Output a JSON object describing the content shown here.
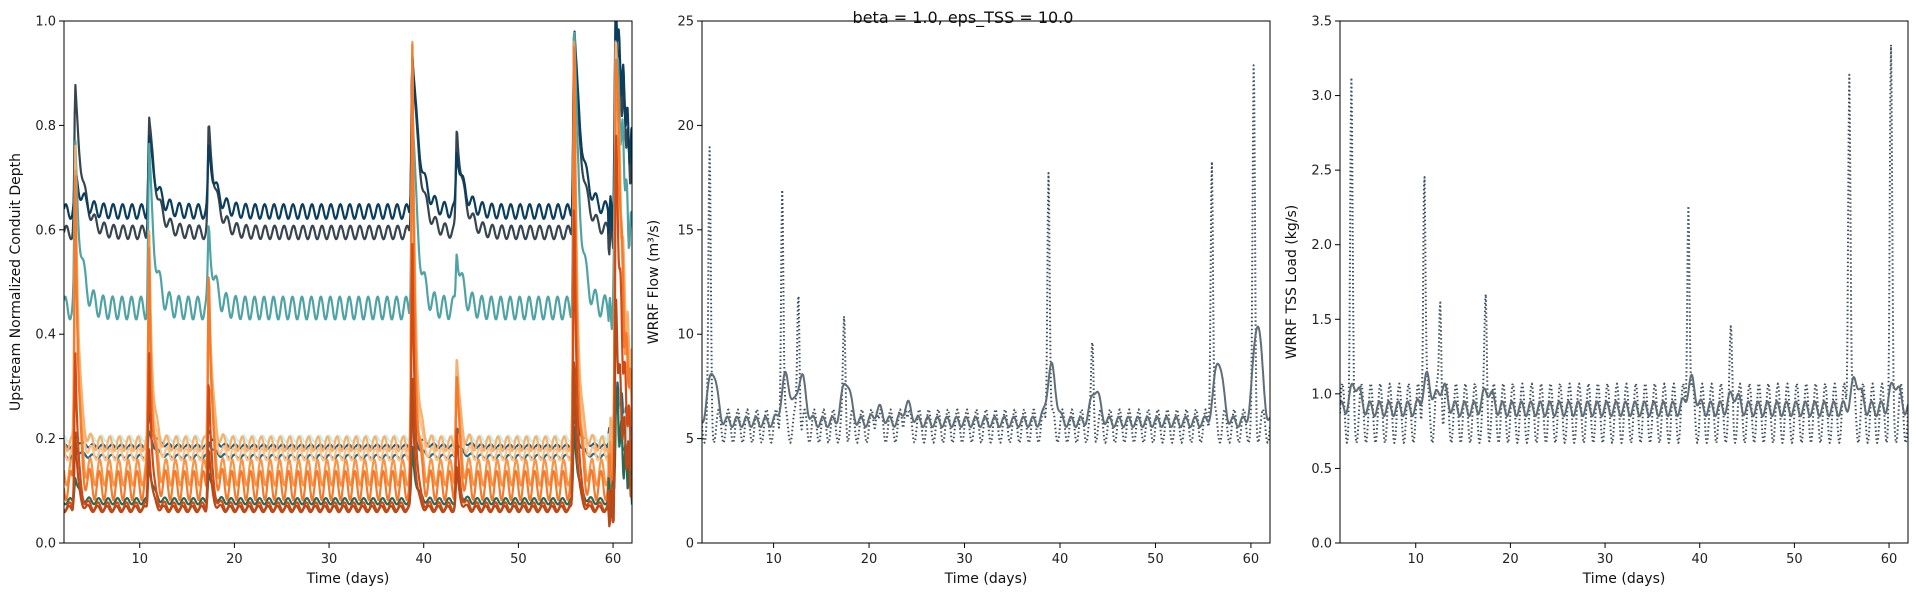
{
  "figure": {
    "suptitle": "beta = 1.0, eps_TSS = 10.0"
  },
  "chart_data": [
    {
      "type": "line",
      "xlabel": "Time (days)",
      "ylabel": "Upstream Normalized Conduit Depth",
      "xlim": [
        2,
        62
      ],
      "ylim": [
        0.0,
        1.0
      ],
      "xticks": [
        10,
        20,
        30,
        40,
        50,
        60
      ],
      "yticks": [
        0.0,
        0.2,
        0.4,
        0.6,
        0.8,
        1.0
      ],
      "ytick_labels": [
        "0.0",
        "0.2",
        "0.4",
        "0.6",
        "0.8",
        "1.0"
      ],
      "grid": false,
      "series": [
        {
          "color": "#36454f",
          "base": 0.595,
          "amp": 0.013,
          "peaks": [
            0.27,
            0.22,
            0.2,
            0.35,
            0.2,
            0.38,
            0.42
          ],
          "peak_width": 0.8
        },
        {
          "color": "#0b3d5c",
          "base": 0.635,
          "amp": 0.014,
          "peaks": [
            0.07,
            0.14,
            0.12,
            0.31,
            0.12,
            0.36,
            0.4
          ],
          "peak_width": 0.8
        },
        {
          "color": "#4fa3a5",
          "base": 0.45,
          "amp": 0.022,
          "peaks": [
            0.3,
            0.3,
            0.15,
            0.4,
            0.12,
            0.55,
            0.55
          ],
          "peak_width": 0.6
        },
        {
          "color": "#1b5e84",
          "base": 0.185,
          "amp": 0.004,
          "peaks": [
            0.02,
            0.06,
            0.03,
            0.07,
            0.04,
            0.08,
            0.1
          ],
          "peak_width": 0.6
        },
        {
          "color": "#1b6e8c",
          "base": 0.165,
          "amp": 0.004,
          "peaks": [
            0.02,
            0.05,
            0.03,
            0.06,
            0.03,
            0.07,
            0.09
          ],
          "peak_width": 0.6
        },
        {
          "color": "#c8f0ea",
          "base": 0.2,
          "amp": 0.006,
          "peaks": [
            0.0,
            0.02,
            0.01,
            0.02,
            0.01,
            0.02,
            0.03
          ],
          "peak_width": 0.5
        },
        {
          "color": "#ffc08a",
          "base": 0.17,
          "amp": 0.012,
          "peaks": [
            0.5,
            0.35,
            0.3,
            0.7,
            0.2,
            0.75,
            0.8
          ],
          "peak_width": 0.35
        },
        {
          "color": "#f7b06d",
          "base": 0.19,
          "amp": 0.014,
          "peaks": [
            0.58,
            0.4,
            0.35,
            0.72,
            0.18,
            0.78,
            0.8
          ],
          "peak_width": 0.35
        },
        {
          "color": "#f99546",
          "base": 0.135,
          "amp": 0.025,
          "peaks": [
            0.6,
            0.45,
            0.4,
            0.8,
            0.2,
            0.85,
            0.85
          ],
          "peak_width": 0.3
        },
        {
          "color": "#f57a2b",
          "base": 0.11,
          "amp": 0.028,
          "peaks": [
            0.62,
            0.46,
            0.45,
            0.82,
            0.22,
            0.87,
            0.9
          ],
          "peak_width": 0.3
        },
        {
          "color": "#2a6a55",
          "base": 0.08,
          "amp": 0.006,
          "peaks": [
            0.05,
            0.08,
            0.06,
            0.1,
            0.05,
            0.15,
            0.2
          ],
          "peak_width": 0.4
        },
        {
          "color": "#d24a14",
          "base": 0.07,
          "amp": 0.008,
          "peaks": [
            0.3,
            0.3,
            0.25,
            0.5,
            0.15,
            0.6,
            0.7
          ],
          "peak_width": 0.3
        },
        {
          "color": "#b84a1a",
          "base": 0.065,
          "amp": 0.006,
          "peaks": [
            0.15,
            0.12,
            0.12,
            0.25,
            0.08,
            0.3,
            0.38
          ],
          "peak_width": 0.3
        }
      ]
    },
    {
      "type": "line",
      "xlabel": "Time (days)",
      "ylabel": "WRRF Flow (m³/s)",
      "xlim": [
        2.5,
        62
      ],
      "ylim": [
        0,
        25
      ],
      "xticks": [
        10,
        20,
        30,
        40,
        50,
        60
      ],
      "yticks": [
        0,
        5,
        10,
        15,
        20,
        25
      ],
      "ytick_labels": [
        "0",
        "5",
        "10",
        "15",
        "20",
        "25"
      ],
      "grid": false,
      "series": [
        {
          "style": "dotted",
          "color": "#3d4e5c",
          "base": 5.6,
          "amp": 0.8,
          "spikes": [
            [
              3.3,
              18.2
            ],
            [
              10.9,
              17.4
            ],
            [
              12.6,
              12.4
            ],
            [
              17.4,
              10.4
            ],
            [
              20.8,
              7.0
            ],
            [
              23.8,
              7.2
            ],
            [
              38.8,
              18.5
            ],
            [
              43.4,
              9.2
            ],
            [
              55.9,
              18.8
            ],
            [
              60.3,
              22.3
            ]
          ]
        },
        {
          "style": "solid",
          "color": "#5f6e78",
          "base": 5.8,
          "amp": 0.25,
          "spikes": [
            [
              3.6,
              8.3
            ],
            [
              11.3,
              8.0
            ],
            [
              12.9,
              8.0
            ],
            [
              17.6,
              7.8
            ],
            [
              21.0,
              6.4
            ],
            [
              24.0,
              6.6
            ],
            [
              39.1,
              8.4
            ],
            [
              43.7,
              7.4
            ],
            [
              56.6,
              8.8
            ],
            [
              60.7,
              10.6
            ]
          ]
        }
      ]
    },
    {
      "type": "line",
      "xlabel": "Time (days)",
      "ylabel": "WRRF TSS Load (kg/s)",
      "xlim": [
        2,
        62
      ],
      "ylim": [
        0.0,
        3.5
      ],
      "xticks": [
        10,
        20,
        30,
        40,
        50,
        60
      ],
      "yticks": [
        0.0,
        0.5,
        1.0,
        1.5,
        2.0,
        2.5,
        3.0,
        3.5
      ],
      "ytick_labels": [
        "0.0",
        "0.5",
        "1.0",
        "1.5",
        "2.0",
        "2.5",
        "3.0",
        "3.5"
      ],
      "grid": false,
      "series": [
        {
          "style": "dotted",
          "color": "#3d4e5c",
          "base": 0.87,
          "amp": 0.2,
          "spikes": [
            [
              3.2,
              2.93
            ],
            [
              10.9,
              2.6
            ],
            [
              12.6,
              1.73
            ],
            [
              17.4,
              1.55
            ],
            [
              38.8,
              2.45
            ],
            [
              43.3,
              1.27
            ],
            [
              55.8,
              3.33
            ],
            [
              60.2,
              3.15
            ]
          ]
        },
        {
          "style": "solid",
          "color": "#5f6e78",
          "base": 0.9,
          "amp": 0.05,
          "spikes": [
            [
              3.6,
              1.07
            ],
            [
              11.2,
              1.1
            ],
            [
              12.8,
              1.05
            ],
            [
              17.6,
              1.03
            ],
            [
              39.1,
              1.08
            ],
            [
              43.6,
              1.0
            ],
            [
              56.5,
              1.1
            ],
            [
              60.6,
              1.08
            ]
          ]
        }
      ]
    }
  ]
}
